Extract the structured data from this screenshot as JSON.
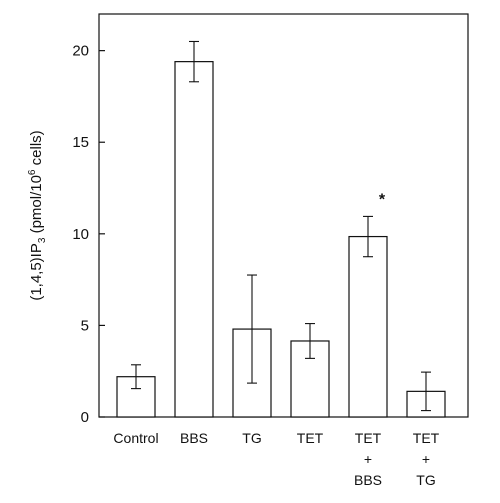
{
  "chart_data": {
    "type": "bar",
    "categories": [
      [
        "Control"
      ],
      [
        "BBS"
      ],
      [
        "TG"
      ],
      [
        "TET"
      ],
      [
        "TET",
        "+",
        "BBS"
      ],
      [
        "TET",
        "+",
        "TG"
      ]
    ],
    "values": [
      2.2,
      19.4,
      4.8,
      4.15,
      9.85,
      1.4
    ],
    "errors": [
      0.65,
      1.1,
      2.95,
      0.95,
      1.1,
      1.05
    ],
    "annotations": [
      {
        "category_index": 4,
        "text": "*"
      }
    ],
    "ylabel": {
      "prefix": "(1,4,5)IP",
      "sub": "3",
      "unit_prefix": "  (pmol/10",
      "sup": "6",
      "unit_suffix": " cells)"
    },
    "ylim": [
      0,
      22
    ],
    "yticks": [
      0,
      5,
      10,
      15,
      20
    ],
    "grid": false,
    "bar_fill": "#ffffff",
    "bar_stroke": "#111111"
  }
}
